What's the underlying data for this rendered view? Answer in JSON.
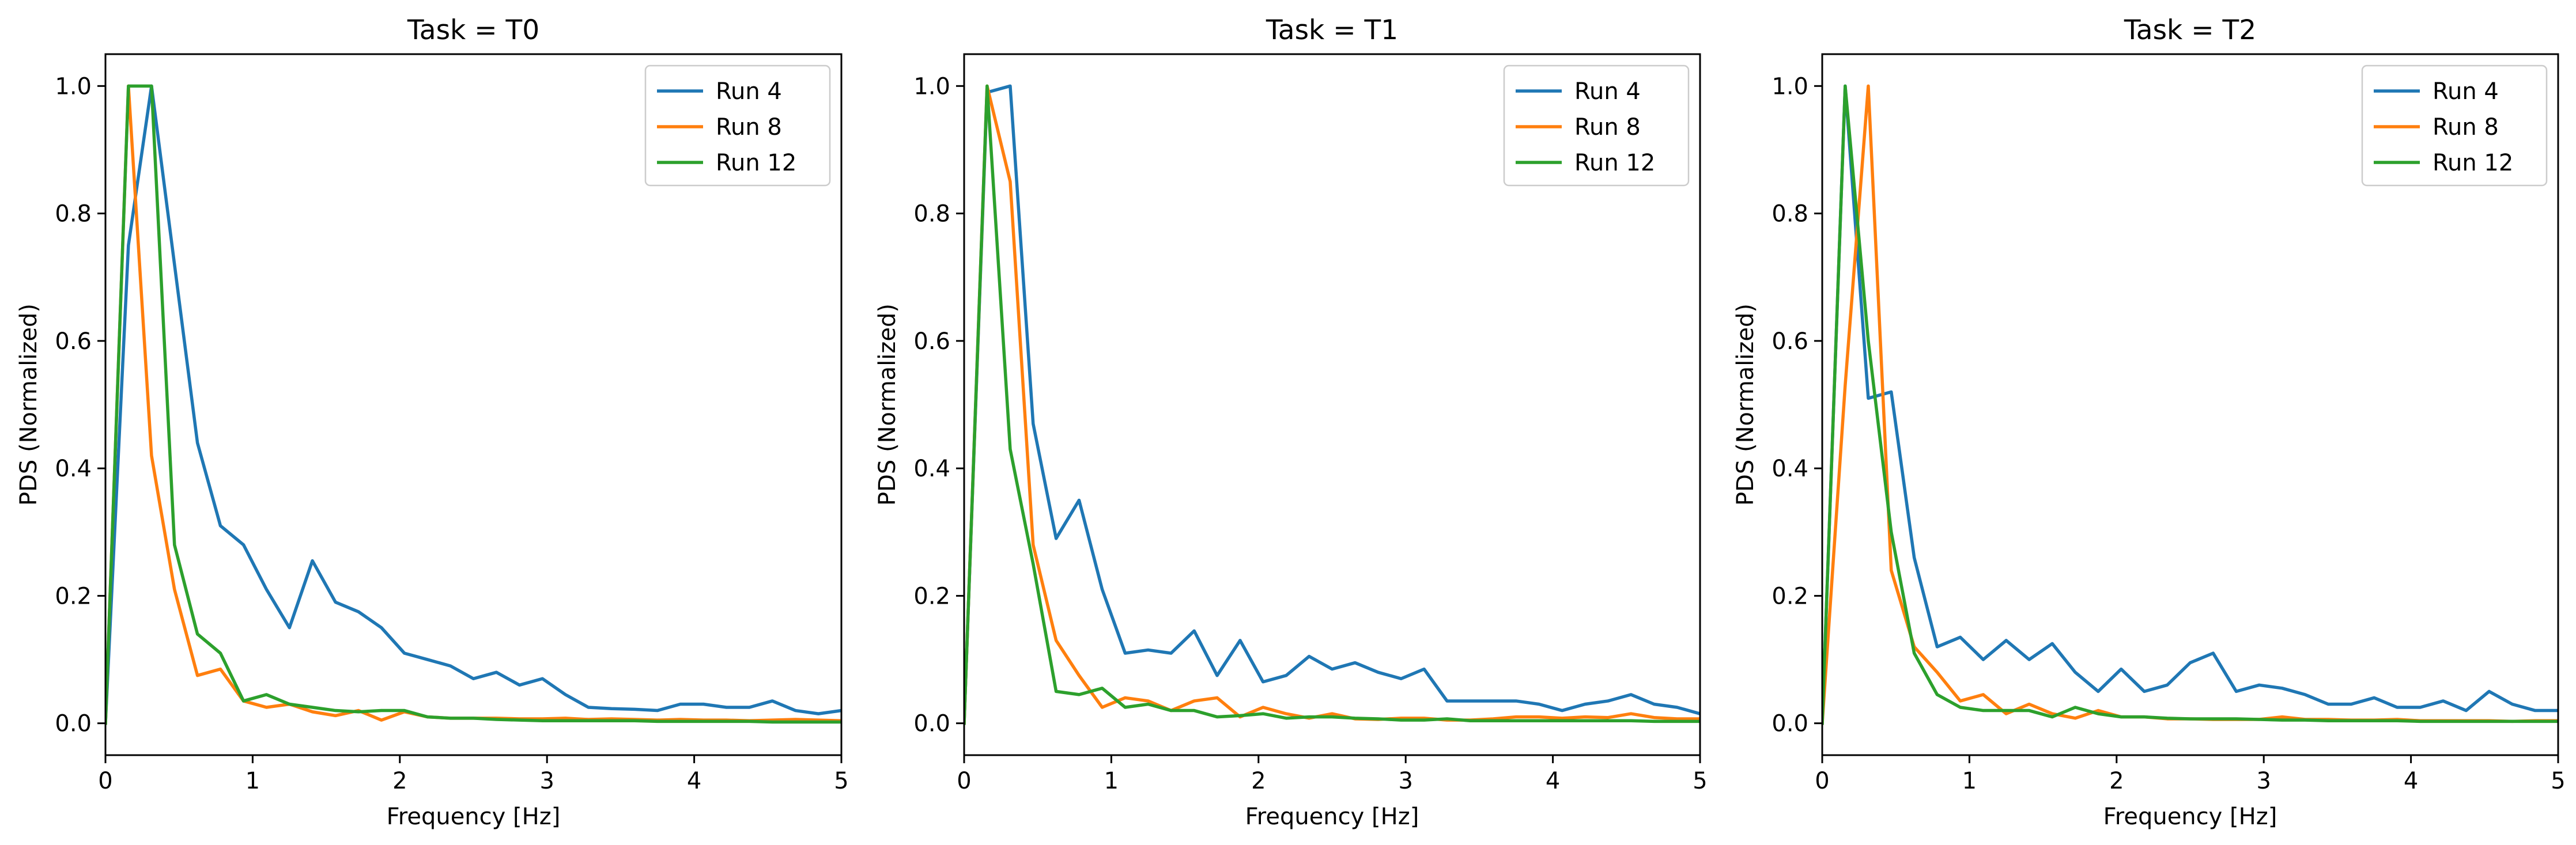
{
  "colors": {
    "Run 4": "#1f77b4",
    "Run 8": "#ff7f0e",
    "Run 12": "#2ca02c"
  },
  "chart_data": [
    {
      "type": "line",
      "title": "Task = T0",
      "xlabel": "Frequency [Hz]",
      "ylabel": "PDS (Normalized)",
      "xlim": [
        0,
        5
      ],
      "ylim": [
        -0.05,
        1.05
      ],
      "xticks": [
        0,
        1,
        2,
        3,
        4,
        5
      ],
      "yticks": [
        0.0,
        0.2,
        0.4,
        0.6,
        0.8,
        1.0
      ],
      "xtick_labels": [
        "0",
        "1",
        "2",
        "3",
        "4",
        "5"
      ],
      "ytick_labels": [
        "0.0",
        "0.2",
        "0.4",
        "0.6",
        "0.8",
        "1.0"
      ],
      "grid": false,
      "legend": "top-right",
      "x": [
        0.0,
        0.156,
        0.313,
        0.469,
        0.625,
        0.781,
        0.938,
        1.094,
        1.25,
        1.406,
        1.563,
        1.719,
        1.875,
        2.031,
        2.188,
        2.344,
        2.5,
        2.656,
        2.813,
        2.969,
        3.125,
        3.281,
        3.438,
        3.594,
        3.75,
        3.906,
        4.063,
        4.219,
        4.375,
        4.531,
        4.688,
        4.844,
        5.0
      ],
      "series": [
        {
          "name": "Run 4",
          "values": [
            0.0,
            0.75,
            1.0,
            0.72,
            0.44,
            0.31,
            0.28,
            0.21,
            0.15,
            0.255,
            0.19,
            0.175,
            0.15,
            0.11,
            0.1,
            0.09,
            0.07,
            0.08,
            0.06,
            0.07,
            0.045,
            0.025,
            0.023,
            0.022,
            0.02,
            0.03,
            0.03,
            0.025,
            0.025,
            0.035,
            0.02,
            0.015,
            0.02
          ]
        },
        {
          "name": "Run 8",
          "values": [
            0.0,
            1.0,
            0.42,
            0.21,
            0.075,
            0.085,
            0.035,
            0.025,
            0.03,
            0.018,
            0.012,
            0.02,
            0.005,
            0.018,
            0.01,
            0.008,
            0.008,
            0.008,
            0.007,
            0.007,
            0.008,
            0.006,
            0.007,
            0.006,
            0.005,
            0.006,
            0.005,
            0.005,
            0.004,
            0.005,
            0.006,
            0.005,
            0.004
          ]
        },
        {
          "name": "Run 12",
          "values": [
            0.0,
            1.0,
            1.0,
            0.28,
            0.14,
            0.11,
            0.035,
            0.045,
            0.03,
            0.025,
            0.02,
            0.018,
            0.02,
            0.02,
            0.01,
            0.008,
            0.008,
            0.006,
            0.005,
            0.004,
            0.004,
            0.004,
            0.004,
            0.004,
            0.003,
            0.003,
            0.003,
            0.003,
            0.003,
            0.002,
            0.002,
            0.002,
            0.002
          ]
        }
      ]
    },
    {
      "type": "line",
      "title": "Task = T1",
      "xlabel": "Frequency [Hz]",
      "ylabel": "PDS (Normalized)",
      "xlim": [
        0,
        5
      ],
      "ylim": [
        -0.05,
        1.05
      ],
      "xticks": [
        0,
        1,
        2,
        3,
        4,
        5
      ],
      "yticks": [
        0.0,
        0.2,
        0.4,
        0.6,
        0.8,
        1.0
      ],
      "xtick_labels": [
        "0",
        "1",
        "2",
        "3",
        "4",
        "5"
      ],
      "ytick_labels": [
        "0.0",
        "0.2",
        "0.4",
        "0.6",
        "0.8",
        "1.0"
      ],
      "grid": false,
      "legend": "top-right",
      "x": [
        0.0,
        0.156,
        0.313,
        0.469,
        0.625,
        0.781,
        0.938,
        1.094,
        1.25,
        1.406,
        1.563,
        1.719,
        1.875,
        2.031,
        2.188,
        2.344,
        2.5,
        2.656,
        2.813,
        2.969,
        3.125,
        3.281,
        3.438,
        3.594,
        3.75,
        3.906,
        4.063,
        4.219,
        4.375,
        4.531,
        4.688,
        4.844,
        5.0
      ],
      "series": [
        {
          "name": "Run 4",
          "values": [
            0.0,
            0.99,
            1.0,
            0.47,
            0.29,
            0.35,
            0.21,
            0.11,
            0.115,
            0.11,
            0.145,
            0.075,
            0.13,
            0.065,
            0.075,
            0.105,
            0.085,
            0.095,
            0.08,
            0.07,
            0.085,
            0.035,
            0.035,
            0.035,
            0.035,
            0.03,
            0.02,
            0.03,
            0.035,
            0.045,
            0.03,
            0.025,
            0.015
          ]
        },
        {
          "name": "Run 8",
          "values": [
            0.0,
            1.0,
            0.85,
            0.28,
            0.13,
            0.075,
            0.025,
            0.04,
            0.035,
            0.02,
            0.035,
            0.04,
            0.01,
            0.025,
            0.015,
            0.008,
            0.015,
            0.007,
            0.006,
            0.008,
            0.008,
            0.005,
            0.005,
            0.007,
            0.01,
            0.01,
            0.008,
            0.01,
            0.009,
            0.015,
            0.009,
            0.007,
            0.007
          ]
        },
        {
          "name": "Run 12",
          "values": [
            0.0,
            1.0,
            0.43,
            0.25,
            0.05,
            0.045,
            0.055,
            0.025,
            0.03,
            0.02,
            0.02,
            0.01,
            0.012,
            0.015,
            0.008,
            0.01,
            0.01,
            0.008,
            0.007,
            0.005,
            0.005,
            0.007,
            0.004,
            0.004,
            0.004,
            0.004,
            0.004,
            0.004,
            0.004,
            0.004,
            0.003,
            0.003,
            0.003
          ]
        }
      ]
    },
    {
      "type": "line",
      "title": "Task = T2",
      "xlabel": "Frequency [Hz]",
      "ylabel": "PDS (Normalized)",
      "xlim": [
        0,
        5
      ],
      "ylim": [
        -0.05,
        1.05
      ],
      "xticks": [
        0,
        1,
        2,
        3,
        4,
        5
      ],
      "yticks": [
        0.0,
        0.2,
        0.4,
        0.6,
        0.8,
        1.0
      ],
      "xtick_labels": [
        "0",
        "1",
        "2",
        "3",
        "4",
        "5"
      ],
      "ytick_labels": [
        "0.0",
        "0.2",
        "0.4",
        "0.6",
        "0.8",
        "1.0"
      ],
      "grid": false,
      "legend": "top-right",
      "x": [
        0.0,
        0.156,
        0.313,
        0.469,
        0.625,
        0.781,
        0.938,
        1.094,
        1.25,
        1.406,
        1.563,
        1.719,
        1.875,
        2.031,
        2.188,
        2.344,
        2.5,
        2.656,
        2.813,
        2.969,
        3.125,
        3.281,
        3.438,
        3.594,
        3.75,
        3.906,
        4.063,
        4.219,
        4.375,
        4.531,
        4.688,
        4.844,
        5.0
      ],
      "series": [
        {
          "name": "Run 4",
          "values": [
            0.0,
            1.0,
            0.51,
            0.52,
            0.26,
            0.12,
            0.135,
            0.1,
            0.13,
            0.1,
            0.125,
            0.08,
            0.05,
            0.085,
            0.05,
            0.06,
            0.095,
            0.11,
            0.05,
            0.06,
            0.055,
            0.045,
            0.03,
            0.03,
            0.04,
            0.025,
            0.025,
            0.035,
            0.02,
            0.05,
            0.03,
            0.02,
            0.02
          ]
        },
        {
          "name": "Run 8",
          "values": [
            0.0,
            0.53,
            1.0,
            0.24,
            0.12,
            0.08,
            0.035,
            0.045,
            0.015,
            0.03,
            0.015,
            0.008,
            0.02,
            0.01,
            0.01,
            0.007,
            0.007,
            0.006,
            0.006,
            0.006,
            0.01,
            0.006,
            0.006,
            0.005,
            0.005,
            0.006,
            0.004,
            0.004,
            0.004,
            0.004,
            0.003,
            0.004,
            0.004
          ]
        },
        {
          "name": "Run 12",
          "values": [
            0.0,
            1.0,
            0.6,
            0.3,
            0.11,
            0.045,
            0.025,
            0.02,
            0.02,
            0.02,
            0.01,
            0.025,
            0.015,
            0.01,
            0.01,
            0.008,
            0.007,
            0.007,
            0.007,
            0.006,
            0.005,
            0.005,
            0.004,
            0.004,
            0.004,
            0.004,
            0.003,
            0.003,
            0.003,
            0.003,
            0.003,
            0.003,
            0.003
          ]
        }
      ]
    }
  ]
}
